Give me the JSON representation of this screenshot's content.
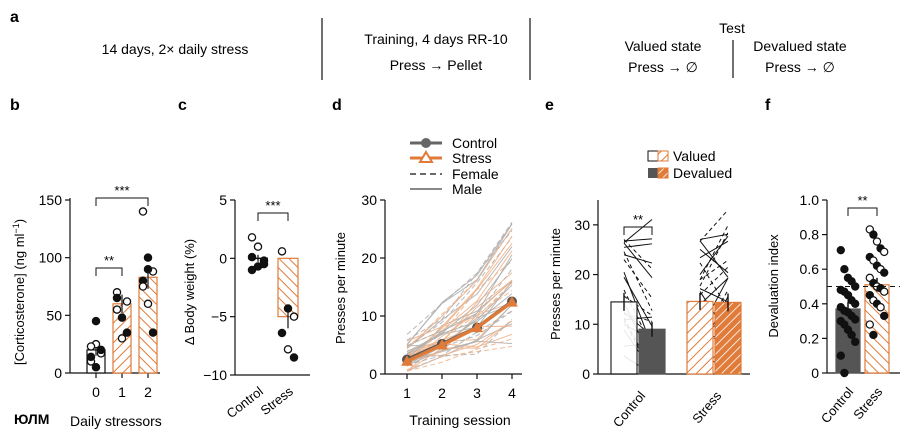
{
  "panel_labels": {
    "a": "a",
    "b": "b",
    "c": "c",
    "d": "d",
    "e": "e",
    "f": "f"
  },
  "panel_a": {
    "stress_text": "14 days, 2× daily stress",
    "training_title": "Training, 4 days RR-10",
    "training_sub": "Press → Pellet",
    "test_title": "Test",
    "valued_title": "Valued state",
    "valued_sub": "Press → ∅",
    "devalued_title": "Devalued state",
    "devalued_sub": "Press → ∅"
  },
  "watermark": "ЮЛМ",
  "colors": {
    "stress": "#e07b39",
    "control_dark": "#555555",
    "control_light": "#999999",
    "black": "#111111"
  },
  "chart_data": [
    {
      "id": "b",
      "type": "bar",
      "ylabel": "[Corticosterone] (ng ml",
      "ylabel_sup": "−1",
      "ylabel_close": ")",
      "xlabel": "Daily stressors",
      "categories": [
        "0",
        "1",
        "2"
      ],
      "values": [
        20,
        60,
        83
      ],
      "errors": [
        5,
        8,
        10
      ],
      "ylim": [
        0,
        150
      ],
      "yticks": [
        "0",
        "50",
        "100",
        "150"
      ],
      "points": [
        [
          10,
          45,
          17,
          14,
          25,
          20,
          23,
          5
        ],
        [
          70,
          48,
          62,
          65,
          30,
          35,
          55
        ],
        [
          140,
          100,
          88,
          80,
          60,
          35,
          75,
          90
        ]
      ],
      "sig": [
        {
          "from": "0",
          "to": "1",
          "label": "**"
        },
        {
          "from": "0",
          "to": "2",
          "label": "***"
        }
      ]
    },
    {
      "id": "c",
      "type": "bar",
      "ylabel": "Δ Body weight (%)",
      "categories": [
        "Control",
        "Stress"
      ],
      "values": [
        0,
        -5
      ],
      "errors": [
        0.3,
        1
      ],
      "ylim": [
        -10,
        5
      ],
      "yticks": [
        "−10",
        "−5",
        "0",
        "5"
      ],
      "points": [
        [
          1.8,
          1.0,
          -0.2,
          0.1,
          -0.7,
          -0.5,
          -1.0
        ],
        [
          0.6,
          -4.3,
          -5.0,
          -6.4,
          -7.8,
          -8.5
        ]
      ],
      "sig": [
        {
          "from": "Control",
          "to": "Stress",
          "label": "***"
        }
      ]
    },
    {
      "id": "d",
      "type": "line",
      "ylabel": "Presses per minute",
      "xlabel": "Training session",
      "x": [
        "1",
        "2",
        "3",
        "4"
      ],
      "ylim": [
        0,
        30
      ],
      "yticks": [
        "0",
        "10",
        "20",
        "30"
      ],
      "series": [
        {
          "name": "Control",
          "values": [
            2.5,
            5.2,
            8.0,
            12.5
          ]
        },
        {
          "name": "Stress",
          "values": [
            2.2,
            5.0,
            8.0,
            12.4
          ]
        }
      ],
      "legend": [
        "Control",
        "Stress",
        "Female",
        "Male"
      ]
    },
    {
      "id": "e",
      "type": "bar",
      "ylabel": "Presses per minute",
      "categories": [
        "Control",
        "Stress"
      ],
      "groups": [
        "Valued",
        "Devalued"
      ],
      "values": {
        "Control": [
          14.5,
          9.0
        ],
        "Stress": [
          14.6,
          14.4
        ]
      },
      "errors": {
        "Control": [
          1.8,
          1.5
        ],
        "Stress": [
          1.7,
          1.8
        ]
      },
      "ylim": [
        0,
        35
      ],
      "yticks": [
        "0",
        "10",
        "20",
        "30"
      ],
      "sig": [
        {
          "from": "Valued",
          "to": "Devalued",
          "group": "Control",
          "label": "**"
        }
      ]
    },
    {
      "id": "f",
      "type": "bar",
      "ylabel": "Devaluation index",
      "categories": [
        "Control",
        "Stress"
      ],
      "values": [
        0.37,
        0.51
      ],
      "errors": [
        0.04,
        0.04
      ],
      "ylim": [
        0,
        1.0
      ],
      "yticks": [
        "0",
        "0.2",
        "0.4",
        "0.6",
        "0.8",
        "1.0"
      ],
      "refline": 0.5,
      "points": [
        [
          0.71,
          0.6,
          0.55,
          0.53,
          0.5,
          0.48,
          0.47,
          0.45,
          0.42,
          0.4,
          0.38,
          0.36,
          0.35,
          0.33,
          0.31,
          0.3,
          0.28,
          0.25,
          0.22,
          0.18,
          0.1,
          0.0
        ],
        [
          0.83,
          0.8,
          0.76,
          0.72,
          0.7,
          0.67,
          0.65,
          0.62,
          0.6,
          0.58,
          0.55,
          0.52,
          0.5,
          0.49,
          0.47,
          0.45,
          0.42,
          0.4,
          0.38,
          0.33,
          0.28,
          0.22
        ]
      ],
      "sig": [
        {
          "from": "Control",
          "to": "Stress",
          "label": "**"
        }
      ]
    }
  ]
}
